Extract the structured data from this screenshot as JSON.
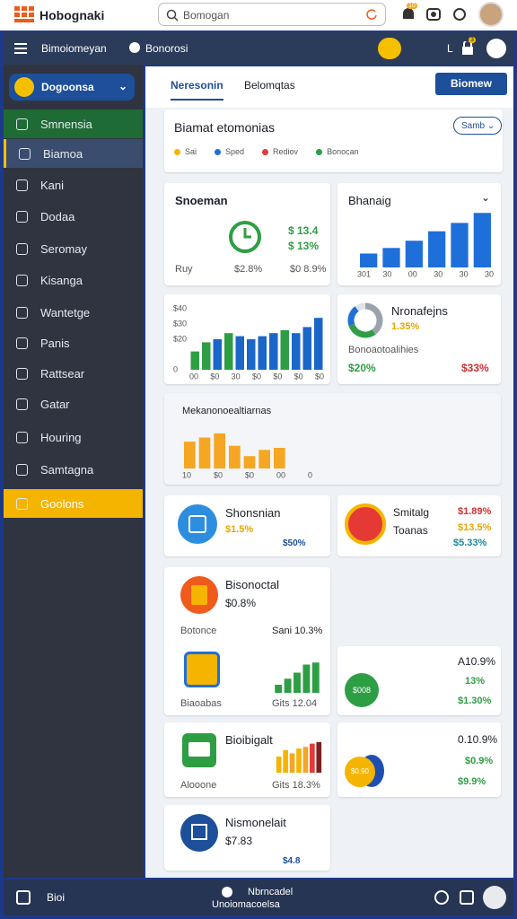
{
  "topbar": {
    "logo": "Hobognaki",
    "search_placeholder": "Bomogan",
    "badge": "10"
  },
  "navbar": {
    "menu_label": "Bimoiomeyan",
    "section": "Bonorosi",
    "user_initial": "L",
    "badge": "3"
  },
  "sidebar": {
    "dropdown": "Dogoonsa",
    "items": [
      "Smnensia",
      "Biamoa",
      "Kani",
      "Dodaa",
      "Seromay",
      "Kisanga",
      "Wantetge",
      "Panis",
      "Rattsear",
      "Gatar",
      "Houring",
      "Samtagna",
      "Goolons"
    ]
  },
  "tabs": {
    "items": [
      "Neresonin",
      "Belomqtas"
    ],
    "button": "Biomew"
  },
  "overview": {
    "title": "Biamat etomonias",
    "select": "Samb",
    "legend": [
      {
        "label": "Sai",
        "color": "#f5b400"
      },
      {
        "label": "Sped",
        "color": "#1e6fd9"
      },
      {
        "label": "Rediov",
        "color": "#e53935"
      },
      {
        "label": "Bonocan",
        "color": "#2e9e44"
      }
    ]
  },
  "card_snoeman": {
    "title": "Snoeman",
    "value_1": "$ 13.4",
    "value_2": "$ 13%",
    "footer_label": "Ruy",
    "footer_1": "$2.8%",
    "footer_2": "$0 8.9%"
  },
  "card_bhanaig": {
    "title": "Bhanaig",
    "chart": {
      "values": [
        2.5,
        3.5,
        4.8,
        6.5,
        8,
        9.8
      ],
      "ylim": [
        0,
        10
      ],
      "color": "#1e6fd9",
      "x_labels": [
        "301",
        "30",
        "00",
        "30",
        "30",
        "30"
      ]
    }
  },
  "card_combo": {
    "chart": {
      "values": [
        12,
        18,
        20,
        24,
        22,
        20,
        22,
        24,
        26,
        24,
        28,
        34
      ],
      "colors": [
        "#2e9e44",
        "#2e9e44",
        "#1a66c9",
        "#2e9e44",
        "#1a66c9",
        "#1a66c9",
        "#1a66c9",
        "#1a66c9",
        "#2e9e44",
        "#1a66c9",
        "#1a66c9",
        "#1a66c9"
      ],
      "ylim": [
        0,
        40
      ],
      "yticks": [
        {
          "value": 40,
          "label": "$40"
        },
        {
          "value": 30,
          "label": "$30"
        },
        {
          "value": 20,
          "label": "$20"
        },
        {
          "value": 0,
          "label": "0"
        }
      ],
      "x_labels": [
        "00",
        "$0",
        "30",
        "$0",
        "$0",
        "$0",
        "$0"
      ]
    }
  },
  "card_donut": {
    "title": "Nronafejns",
    "value": "1.35%",
    "label": "Bonoaotoalihies",
    "positive": "$20%",
    "negative": "$33%",
    "donut": {
      "values": [
        40,
        30,
        20,
        10
      ],
      "colors": [
        "#9aa3ad",
        "#2e9e44",
        "#1e6fd9",
        "#dfe3e8"
      ]
    }
  },
  "card_wide": {
    "title": "Mekanonoealtiarnas",
    "chart": {
      "values": [
        26,
        30,
        34,
        22,
        12,
        18,
        20,
        0,
        0
      ],
      "ylim": [
        0,
        40
      ],
      "color": "#f5a623",
      "x_labels": [
        "10",
        "$0",
        "$0",
        "00",
        "0"
      ]
    }
  },
  "card_shonsnian": {
    "title": "Shonsnian",
    "value": "$1.5%",
    "badge": "$50%"
  },
  "card_smitalg": {
    "title": "Smitalg",
    "subtitle": "Toanas",
    "value_1": "$1.89%",
    "value_2": "$13.5%",
    "value_3": "$5.33%"
  },
  "card_bisonoctal": {
    "title": "Bisonoctal",
    "value": "$0.8%",
    "row_label": "Botonce",
    "row_value": "Sani 10.3%",
    "footer_label": "Biaoabas",
    "footer_value": "Gits 12.04",
    "chart": {
      "values": [
        8,
        14,
        20,
        28,
        30
      ],
      "ylim": [
        0,
        32
      ],
      "color": "#2e9e44"
    }
  },
  "card_a10": {
    "value_1": "A10.9%",
    "value_2": "13%",
    "value_3": "$1.30%",
    "badge": "$008"
  },
  "card_bioibigalt": {
    "title": "Bioibigalt",
    "subtitle": "Alooone",
    "footer_value": "Gits 18.3%",
    "chart": {
      "values": [
        20,
        28,
        24,
        30,
        32,
        36,
        38
      ],
      "colors": [
        "#f5b400",
        "#f5b400",
        "#f5a623",
        "#f5b400",
        "#f5a623",
        "#e53935",
        "#7b1f1f"
      ],
      "ylim": [
        0,
        40
      ]
    }
  },
  "card_right5": {
    "value_1": "0.10.9%",
    "value_2": "$0.9%",
    "value_3": "$9.9%",
    "badge": "$0.90"
  },
  "card_nismonelait": {
    "title": "Nismonelait",
    "value": "$7.83",
    "badge": "$4.8"
  },
  "bottombar": {
    "left": "Bioi",
    "title": "Nbrncadel",
    "subtitle": "Unoiomacoelsa"
  }
}
